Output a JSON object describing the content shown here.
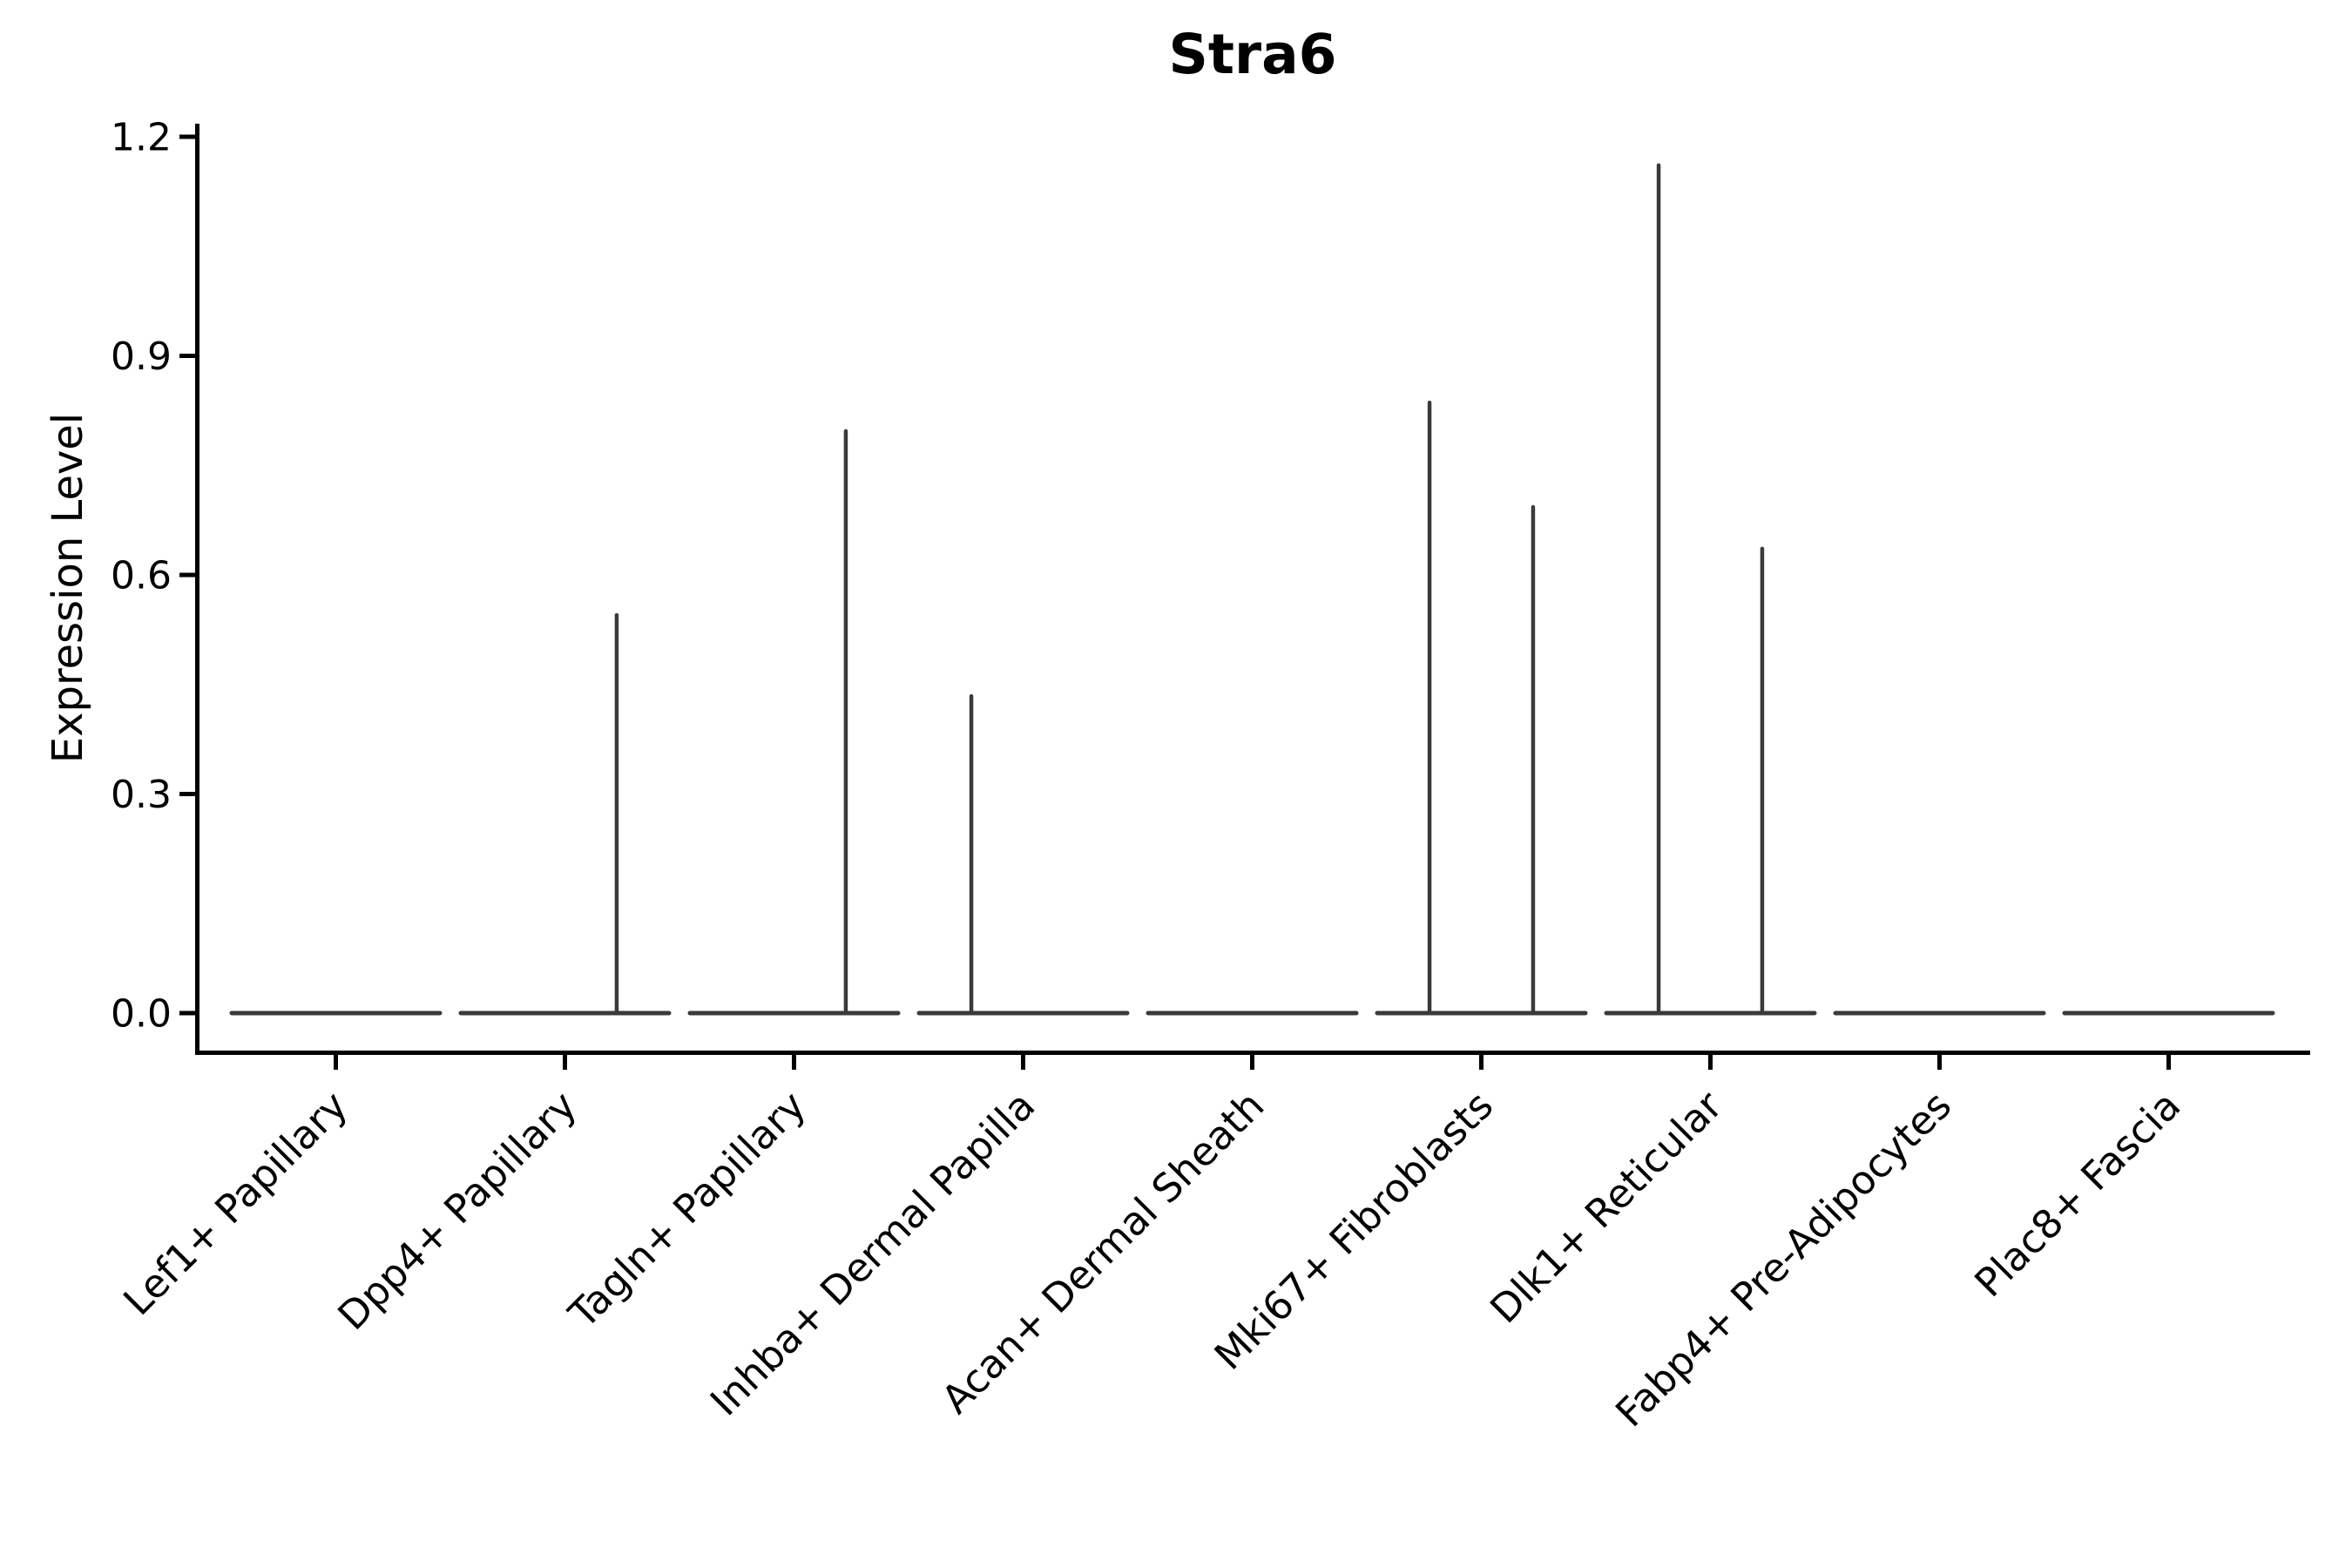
{
  "chart_data": {
    "type": "violin",
    "title": "Stra6",
    "xlabel": "",
    "ylabel": "Expression Level",
    "yticks": [
      {
        "label": "0.0",
        "value": 0.0
      },
      {
        "label": "0.3",
        "value": 0.3
      },
      {
        "label": "0.6",
        "value": 0.6
      },
      {
        "label": "0.9",
        "value": 0.9
      },
      {
        "label": "1.2",
        "value": 1.2
      }
    ],
    "ylim": [
      -0.054,
      1.218
    ],
    "grid": false,
    "legend": "none",
    "categories": [
      "Lef1+ Papillary",
      "Dpp4+ Papillary",
      "Tagln+ Papillary",
      "Inhba+ Dermal Papilla",
      "Acan+ Dermal Sheath",
      "Mki67+ Fibroblasts",
      "Dlk1+ Reticular",
      "Fabp4+ Pre-Adipocytes",
      "Plac8+ Fascia"
    ],
    "violins": [
      {
        "category": "Lef1+ Papillary",
        "baseline_value": 0.0,
        "spikes": []
      },
      {
        "category": "Dpp4+ Papillary",
        "baseline_value": 0.0,
        "spikes": [
          {
            "offset_frac": 0.226,
            "max_value": 0.545
          }
        ]
      },
      {
        "category": "Tagln+ Papillary",
        "baseline_value": 0.0,
        "spikes": [
          {
            "offset_frac": 0.226,
            "max_value": 0.797
          }
        ]
      },
      {
        "category": "Inhba+ Dermal Papilla",
        "baseline_value": 0.0,
        "spikes": [
          {
            "offset_frac": -0.226,
            "max_value": 0.434
          }
        ]
      },
      {
        "category": "Acan+ Dermal Sheath",
        "baseline_value": 0.0,
        "spikes": []
      },
      {
        "category": "Mki67+ Fibroblasts",
        "baseline_value": 0.0,
        "spikes": [
          {
            "offset_frac": -0.226,
            "max_value": 0.836
          },
          {
            "offset_frac": 0.226,
            "max_value": 0.693
          }
        ]
      },
      {
        "category": "Dlk1+ Reticular",
        "baseline_value": 0.0,
        "spikes": [
          {
            "offset_frac": -0.226,
            "max_value": 1.161
          },
          {
            "offset_frac": 0.226,
            "max_value": 0.636
          }
        ]
      },
      {
        "category": "Fabp4+ Pre-Adipocytes",
        "baseline_value": 0.0,
        "spikes": []
      },
      {
        "category": "Plac8+ Fascia",
        "baseline_value": 0.0,
        "spikes": []
      }
    ],
    "colors": {
      "axis": "#000000",
      "text": "#000000",
      "violin_stroke": "#3a3a3a",
      "background": "#ffffff"
    }
  }
}
